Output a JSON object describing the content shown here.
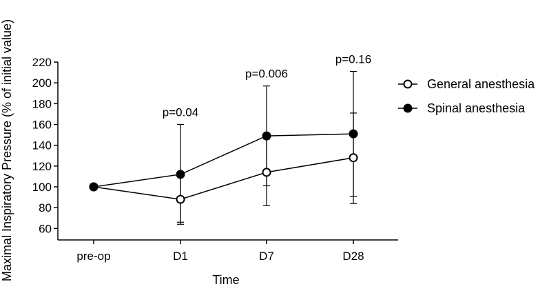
{
  "chart_data": {
    "type": "line",
    "xlabel": "Time",
    "ylabel": "Maximal Inspiratory Pressure (% of initial value)",
    "categories": [
      "pre-op",
      "D1",
      "D7",
      "D28"
    ],
    "ylim": [
      50,
      220
    ],
    "yticks": [
      60,
      80,
      100,
      120,
      140,
      160,
      180,
      200,
      220
    ],
    "grid": false,
    "legend_position": "right",
    "series": [
      {
        "name": "General anesthesia",
        "marker": "open-circle",
        "values": [
          100,
          88,
          114,
          128
        ],
        "err_low": [
          100,
          64,
          82,
          84
        ],
        "err_high": [
          100,
          110,
          146,
          171
        ]
      },
      {
        "name": "Spinal anesthesia",
        "marker": "filled-circle",
        "values": [
          100,
          112,
          149,
          151
        ],
        "err_low": [
          100,
          66,
          101,
          91
        ],
        "err_high": [
          100,
          160,
          197,
          211
        ]
      }
    ],
    "annotations": [
      {
        "category": "D1",
        "text": "p=0.04"
      },
      {
        "category": "D7",
        "text": "p=0.006"
      },
      {
        "category": "D28",
        "text": "p=0.16"
      }
    ]
  }
}
